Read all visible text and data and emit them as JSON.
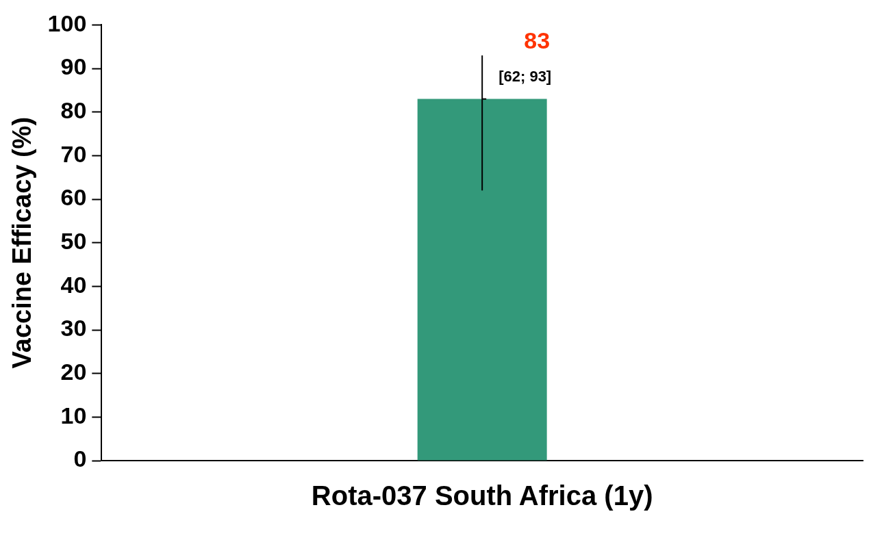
{
  "chart_data": {
    "type": "bar",
    "ylabel": "Vaccine Efficacy (%)",
    "categories": [
      "Rota-037 South Africa (1y)"
    ],
    "values": [
      83
    ],
    "color": "#33997a",
    "errors": [
      [
        62,
        93
      ]
    ],
    "data_labels": true,
    "annotations": [
      {
        "text": "[62; 93]",
        "x": "Rota-037 South Africa (1y)",
        "y": 88
      }
    ],
    "ylim": [
      0,
      100
    ],
    "yticks": [
      0,
      10,
      20,
      30,
      40,
      50,
      60,
      70,
      80,
      90,
      100
    ],
    "grid": false,
    "legend": false
  }
}
